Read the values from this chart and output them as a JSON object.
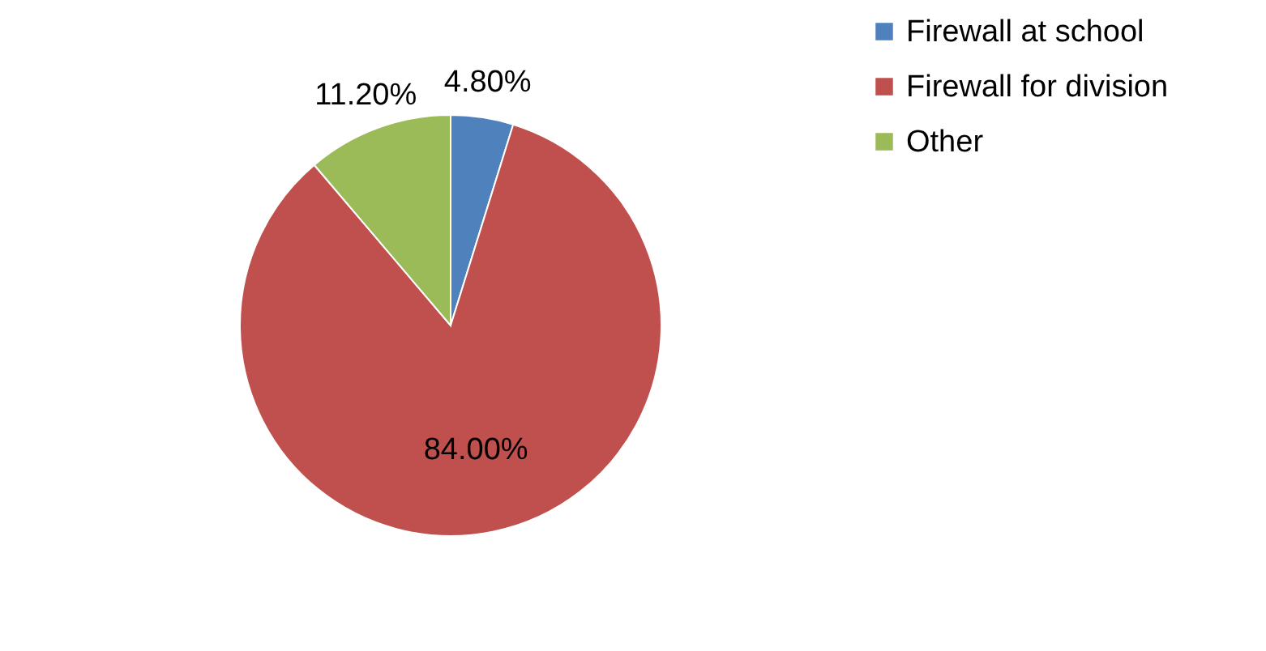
{
  "chart_data": {
    "type": "pie",
    "categories": [
      "Firewall at school",
      "Firewall for division",
      "Other"
    ],
    "values": [
      4.8,
      84.0,
      11.2
    ],
    "colors": [
      "#4f81bd",
      "#c0504d",
      "#9bbb59"
    ],
    "value_labels": [
      "4.80%",
      "84.00%",
      "11.20%"
    ],
    "legend": "right"
  }
}
